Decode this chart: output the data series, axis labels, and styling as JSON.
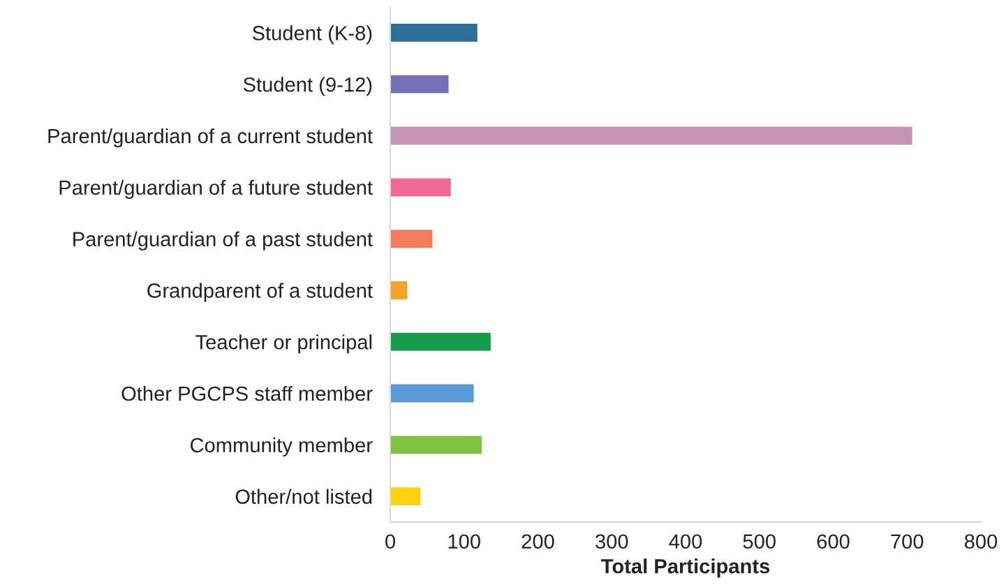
{
  "chart_data": {
    "type": "bar",
    "orientation": "horizontal",
    "xlabel": "Total Participants",
    "categories": [
      "Student (K-8)",
      "Student (9-12)",
      "Parent/guardian of a current student",
      "Parent/guardian of a future student",
      "Parent/guardian of a past student",
      "Grandparent of a student",
      "Teacher or principal",
      "Other PGCPS staff member",
      "Community member",
      "Other/not listed"
    ],
    "values": [
      118,
      79,
      707,
      82,
      57,
      23,
      136,
      113,
      124,
      41
    ],
    "colors": [
      "#2e6f9a",
      "#7570b7",
      "#c595b3",
      "#f06893",
      "#f47c5f",
      "#f7a12b",
      "#159c48",
      "#5b9bd5",
      "#7fc141",
      "#fdd30f"
    ],
    "xlim": [
      0,
      800
    ],
    "xticks": [
      0,
      100,
      200,
      300,
      400,
      500,
      600,
      700,
      800
    ],
    "grid": false,
    "legend": false
  }
}
